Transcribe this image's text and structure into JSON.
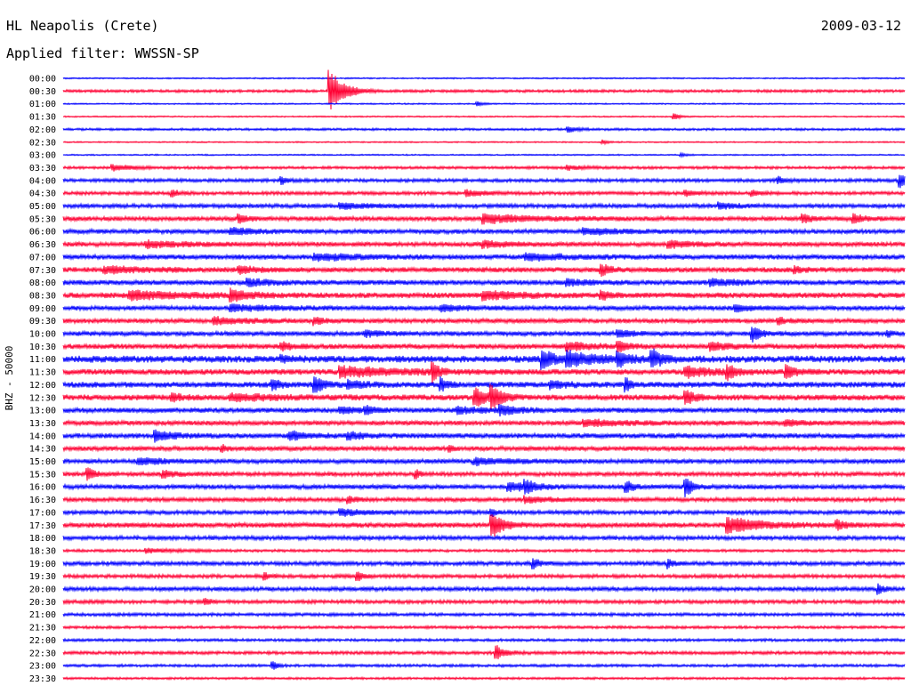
{
  "header": {
    "title": "HL Neapolis (Crete)",
    "date": "2009-03-12",
    "filter": "Applied filter: WWSSN-SP"
  },
  "chart_data": {
    "type": "line",
    "ylabel": "BHZ - 50000",
    "colors": [
      "#0000ff",
      "#ff0033"
    ],
    "rows": [
      {
        "label": "00:00",
        "amp": 0.6,
        "events": []
      },
      {
        "label": "00:30",
        "amp": 1.2,
        "events": [
          {
            "x": 0.318,
            "amp": 22,
            "dur": 0.015
          }
        ]
      },
      {
        "label": "01:00",
        "amp": 0.6,
        "events": [
          {
            "x": 0.493,
            "amp": 2,
            "dur": 0.006
          }
        ]
      },
      {
        "label": "01:30",
        "amp": 0.6,
        "events": [
          {
            "x": 0.727,
            "amp": 3,
            "dur": 0.006
          }
        ]
      },
      {
        "label": "02:00",
        "amp": 1.0,
        "events": [
          {
            "x": 0.601,
            "amp": 3,
            "dur": 0.01
          }
        ]
      },
      {
        "label": "02:30",
        "amp": 0.6,
        "events": [
          {
            "x": 0.642,
            "amp": 2,
            "dur": 0.006
          }
        ]
      },
      {
        "label": "03:00",
        "amp": 0.6,
        "events": [
          {
            "x": 0.735,
            "amp": 2,
            "dur": 0.006
          }
        ]
      },
      {
        "label": "03:30",
        "amp": 1.2,
        "events": [
          {
            "x": 0.06,
            "amp": 3,
            "dur": 0.02
          },
          {
            "x": 0.6,
            "amp": 2,
            "dur": 0.02
          }
        ]
      },
      {
        "label": "04:00",
        "amp": 1.5,
        "events": [
          {
            "x": 0.26,
            "amp": 4,
            "dur": 0.006
          },
          {
            "x": 0.85,
            "amp": 3,
            "dur": 0.01
          },
          {
            "x": 0.995,
            "amp": 7,
            "dur": 0.008
          }
        ]
      },
      {
        "label": "04:30",
        "amp": 1.5,
        "events": [
          {
            "x": 0.13,
            "amp": 3,
            "dur": 0.01
          },
          {
            "x": 0.48,
            "amp": 3,
            "dur": 0.02
          },
          {
            "x": 0.74,
            "amp": 3,
            "dur": 0.01
          },
          {
            "x": 0.82,
            "amp": 3,
            "dur": 0.008
          }
        ]
      },
      {
        "label": "05:00",
        "amp": 1.8,
        "events": [
          {
            "x": 0.33,
            "amp": 3,
            "dur": 0.03
          },
          {
            "x": 0.78,
            "amp": 3,
            "dur": 0.02
          }
        ]
      },
      {
        "label": "05:30",
        "amp": 2.0,
        "events": [
          {
            "x": 0.21,
            "amp": 4,
            "dur": 0.01
          },
          {
            "x": 0.5,
            "amp": 4,
            "dur": 0.06
          },
          {
            "x": 0.88,
            "amp": 4,
            "dur": 0.01
          },
          {
            "x": 0.94,
            "amp": 5,
            "dur": 0.01
          }
        ]
      },
      {
        "label": "06:00",
        "amp": 2.0,
        "events": [
          {
            "x": 0.2,
            "amp": 3,
            "dur": 0.03
          },
          {
            "x": 0.62,
            "amp": 3,
            "dur": 0.04
          }
        ]
      },
      {
        "label": "06:30",
        "amp": 2.0,
        "events": [
          {
            "x": 0.1,
            "amp": 3,
            "dur": 0.04
          },
          {
            "x": 0.5,
            "amp": 3,
            "dur": 0.03
          },
          {
            "x": 0.72,
            "amp": 3,
            "dur": 0.03
          }
        ]
      },
      {
        "label": "07:00",
        "amp": 2.2,
        "events": [
          {
            "x": 0.3,
            "amp": 3,
            "dur": 0.05
          },
          {
            "x": 0.55,
            "amp": 3,
            "dur": 0.05
          }
        ]
      },
      {
        "label": "07:30",
        "amp": 2.2,
        "events": [
          {
            "x": 0.05,
            "amp": 3,
            "dur": 0.05
          },
          {
            "x": 0.21,
            "amp": 3,
            "dur": 0.02
          },
          {
            "x": 0.64,
            "amp": 6,
            "dur": 0.01
          },
          {
            "x": 0.87,
            "amp": 3,
            "dur": 0.01
          }
        ]
      },
      {
        "label": "08:00",
        "amp": 2.2,
        "events": [
          {
            "x": 0.22,
            "amp": 3,
            "dur": 0.03
          },
          {
            "x": 0.6,
            "amp": 3,
            "dur": 0.02
          },
          {
            "x": 0.77,
            "amp": 3,
            "dur": 0.03
          }
        ]
      },
      {
        "label": "08:30",
        "amp": 2.4,
        "events": [
          {
            "x": 0.08,
            "amp": 4,
            "dur": 0.06
          },
          {
            "x": 0.2,
            "amp": 5,
            "dur": 0.02
          },
          {
            "x": 0.5,
            "amp": 4,
            "dur": 0.04
          },
          {
            "x": 0.64,
            "amp": 4,
            "dur": 0.01
          }
        ]
      },
      {
        "label": "09:00",
        "amp": 2.0,
        "events": [
          {
            "x": 0.2,
            "amp": 3,
            "dur": 0.05
          },
          {
            "x": 0.45,
            "amp": 3,
            "dur": 0.03
          },
          {
            "x": 0.8,
            "amp": 3,
            "dur": 0.02
          }
        ]
      },
      {
        "label": "09:30",
        "amp": 2.0,
        "events": [
          {
            "x": 0.18,
            "amp": 3,
            "dur": 0.04
          },
          {
            "x": 0.3,
            "amp": 3,
            "dur": 0.01
          },
          {
            "x": 0.85,
            "amp": 3,
            "dur": 0.01
          }
        ]
      },
      {
        "label": "10:00",
        "amp": 2.0,
        "events": [
          {
            "x": 0.36,
            "amp": 3,
            "dur": 0.02
          },
          {
            "x": 0.66,
            "amp": 3,
            "dur": 0.02
          },
          {
            "x": 0.82,
            "amp": 7,
            "dur": 0.01
          },
          {
            "x": 0.98,
            "amp": 3,
            "dur": 0.005
          }
        ]
      },
      {
        "label": "10:30",
        "amp": 2.2,
        "events": [
          {
            "x": 0.26,
            "amp": 4,
            "dur": 0.01
          },
          {
            "x": 0.6,
            "amp": 4,
            "dur": 0.03
          },
          {
            "x": 0.66,
            "amp": 4,
            "dur": 0.01
          },
          {
            "x": 0.77,
            "amp": 4,
            "dur": 0.02
          }
        ]
      },
      {
        "label": "11:00",
        "amp": 3.0,
        "events": [
          {
            "x": 0.26,
            "amp": 3,
            "dur": 0.01
          },
          {
            "x": 0.57,
            "amp": 10,
            "dur": 0.012
          },
          {
            "x": 0.6,
            "amp": 7,
            "dur": 0.03
          },
          {
            "x": 0.66,
            "amp": 8,
            "dur": 0.01
          },
          {
            "x": 0.7,
            "amp": 9,
            "dur": 0.012
          }
        ]
      },
      {
        "label": "11:30",
        "amp": 2.5,
        "events": [
          {
            "x": 0.33,
            "amp": 5,
            "dur": 0.06
          },
          {
            "x": 0.44,
            "amp": 9,
            "dur": 0.006
          },
          {
            "x": 0.74,
            "amp": 5,
            "dur": 0.03
          },
          {
            "x": 0.79,
            "amp": 6,
            "dur": 0.01
          },
          {
            "x": 0.86,
            "amp": 7,
            "dur": 0.01
          }
        ]
      },
      {
        "label": "12:00",
        "amp": 2.5,
        "events": [
          {
            "x": 0.25,
            "amp": 5,
            "dur": 0.008
          },
          {
            "x": 0.3,
            "amp": 8,
            "dur": 0.01
          },
          {
            "x": 0.34,
            "amp": 3,
            "dur": 0.02
          },
          {
            "x": 0.45,
            "amp": 6,
            "dur": 0.006
          },
          {
            "x": 0.58,
            "amp": 3,
            "dur": 0.02
          },
          {
            "x": 0.67,
            "amp": 6,
            "dur": 0.006
          }
        ]
      },
      {
        "label": "12:30",
        "amp": 2.5,
        "events": [
          {
            "x": 0.13,
            "amp": 4,
            "dur": 0.01
          },
          {
            "x": 0.2,
            "amp": 3,
            "dur": 0.05
          },
          {
            "x": 0.49,
            "amp": 9,
            "dur": 0.015
          },
          {
            "x": 0.51,
            "amp": 11,
            "dur": 0.01
          },
          {
            "x": 0.74,
            "amp": 7,
            "dur": 0.01
          }
        ]
      },
      {
        "label": "13:00",
        "amp": 2.2,
        "events": [
          {
            "x": 0.33,
            "amp": 3,
            "dur": 0.02
          },
          {
            "x": 0.36,
            "amp": 4,
            "dur": 0.01
          },
          {
            "x": 0.47,
            "amp": 3,
            "dur": 0.03
          },
          {
            "x": 0.52,
            "amp": 4,
            "dur": 0.02
          }
        ]
      },
      {
        "label": "13:30",
        "amp": 2.0,
        "events": [
          {
            "x": 0.62,
            "amp": 3,
            "dur": 0.05
          },
          {
            "x": 0.86,
            "amp": 3,
            "dur": 0.02
          }
        ]
      },
      {
        "label": "14:00",
        "amp": 2.2,
        "events": [
          {
            "x": 0.11,
            "amp": 5,
            "dur": 0.02
          },
          {
            "x": 0.27,
            "amp": 4,
            "dur": 0.02
          },
          {
            "x": 0.34,
            "amp": 3,
            "dur": 0.02
          }
        ]
      },
      {
        "label": "14:30",
        "amp": 2.0,
        "events": [
          {
            "x": 0.19,
            "amp": 3,
            "dur": 0.005
          },
          {
            "x": 0.46,
            "amp": 3,
            "dur": 0.005
          }
        ]
      },
      {
        "label": "15:00",
        "amp": 2.0,
        "events": [
          {
            "x": 0.09,
            "amp": 3,
            "dur": 0.03
          },
          {
            "x": 0.49,
            "amp": 3,
            "dur": 0.04
          }
        ]
      },
      {
        "label": "15:30",
        "amp": 1.8,
        "events": [
          {
            "x": 0.03,
            "amp": 6,
            "dur": 0.008
          },
          {
            "x": 0.12,
            "amp": 3,
            "dur": 0.02
          },
          {
            "x": 0.42,
            "amp": 4,
            "dur": 0.005
          }
        ]
      },
      {
        "label": "16:00",
        "amp": 2.0,
        "events": [
          {
            "x": 0.53,
            "amp": 4,
            "dur": 0.03
          },
          {
            "x": 0.55,
            "amp": 6,
            "dur": 0.008
          },
          {
            "x": 0.67,
            "amp": 6,
            "dur": 0.008
          },
          {
            "x": 0.74,
            "amp": 10,
            "dur": 0.008
          }
        ]
      },
      {
        "label": "16:30",
        "amp": 1.8,
        "events": [
          {
            "x": 0.34,
            "amp": 3,
            "dur": 0.008
          },
          {
            "x": 0.55,
            "amp": 3,
            "dur": 0.03
          }
        ]
      },
      {
        "label": "17:00",
        "amp": 1.8,
        "events": [
          {
            "x": 0.33,
            "amp": 3,
            "dur": 0.03
          },
          {
            "x": 0.51,
            "amp": 3,
            "dur": 0.005
          }
        ]
      },
      {
        "label": "17:30",
        "amp": 2.2,
        "events": [
          {
            "x": 0.51,
            "amp": 13,
            "dur": 0.012
          },
          {
            "x": 0.79,
            "amp": 8,
            "dur": 0.035
          },
          {
            "x": 0.92,
            "amp": 4,
            "dur": 0.01
          }
        ]
      },
      {
        "label": "18:00",
        "amp": 1.8,
        "events": []
      },
      {
        "label": "18:30",
        "amp": 1.2,
        "events": [
          {
            "x": 0.1,
            "amp": 2,
            "dur": 0.03
          }
        ]
      },
      {
        "label": "19:00",
        "amp": 1.8,
        "events": [
          {
            "x": 0.56,
            "amp": 5,
            "dur": 0.006
          },
          {
            "x": 0.72,
            "amp": 4,
            "dur": 0.006
          }
        ]
      },
      {
        "label": "19:30",
        "amp": 1.6,
        "events": [
          {
            "x": 0.24,
            "amp": 3,
            "dur": 0.006
          },
          {
            "x": 0.35,
            "amp": 5,
            "dur": 0.006
          }
        ]
      },
      {
        "label": "20:00",
        "amp": 1.8,
        "events": [
          {
            "x": 0.97,
            "amp": 5,
            "dur": 0.006
          }
        ]
      },
      {
        "label": "20:30",
        "amp": 1.6,
        "events": [
          {
            "x": 0.17,
            "amp": 3,
            "dur": 0.006
          }
        ]
      },
      {
        "label": "21:00",
        "amp": 1.4,
        "events": []
      },
      {
        "label": "21:30",
        "amp": 1.2,
        "events": []
      },
      {
        "label": "22:00",
        "amp": 1.2,
        "events": []
      },
      {
        "label": "22:30",
        "amp": 1.4,
        "events": [
          {
            "x": 0.515,
            "amp": 7,
            "dur": 0.01
          }
        ]
      },
      {
        "label": "23:00",
        "amp": 1.2,
        "events": [
          {
            "x": 0.25,
            "amp": 4,
            "dur": 0.005
          }
        ]
      },
      {
        "label": "23:30",
        "amp": 1.0,
        "events": []
      }
    ]
  }
}
